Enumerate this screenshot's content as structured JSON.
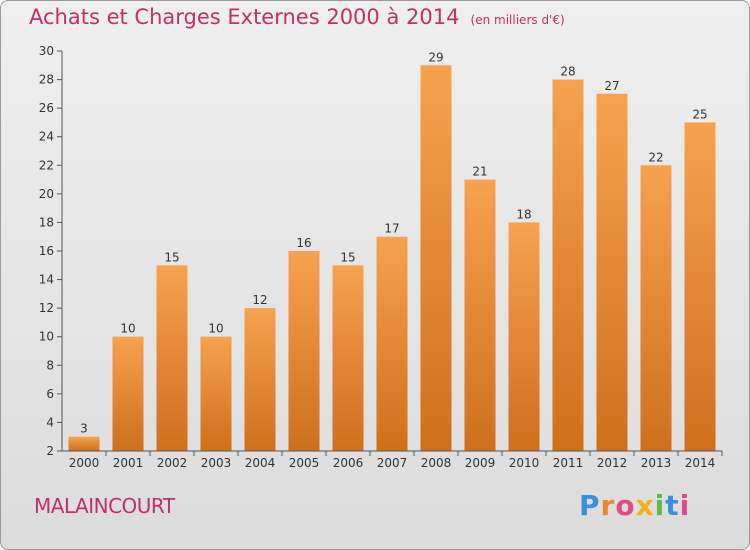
{
  "header": {
    "title": "Achats et Charges Externes 2000 à 2014",
    "unit": "(en milliers d'€)"
  },
  "footer": {
    "commune": "MALAINCOURT",
    "logo_letters": [
      "P",
      "r",
      "o",
      "x",
      "i",
      "t",
      "i"
    ],
    "logo_colors": [
      "#3a8fd6",
      "#e8862a",
      "#e04b84",
      "#f2b11c",
      "#5fb84a",
      "#3a8fd6",
      "#e04b84"
    ]
  },
  "colors": {
    "bar_light": "#f6a24f",
    "bar_dark": "#cf6f1c",
    "title": "#c0306a",
    "axis": "#555555"
  },
  "chart_data": {
    "type": "bar",
    "title": "Achats et Charges Externes 2000 à 2014",
    "ylabel": "(en milliers d'€)",
    "xlabel": "",
    "categories": [
      "2000",
      "2001",
      "2002",
      "2003",
      "2004",
      "2005",
      "2006",
      "2007",
      "2008",
      "2009",
      "2010",
      "2011",
      "2012",
      "2013",
      "2014"
    ],
    "values": [
      3,
      10,
      15,
      10,
      12,
      16,
      15,
      17,
      29,
      21,
      18,
      28,
      27,
      22,
      25
    ],
    "ylim": [
      2,
      30
    ],
    "yticks": [
      2,
      4,
      6,
      8,
      10,
      12,
      14,
      16,
      18,
      20,
      22,
      24,
      26,
      28,
      30
    ],
    "grid": false,
    "legend": "none"
  }
}
